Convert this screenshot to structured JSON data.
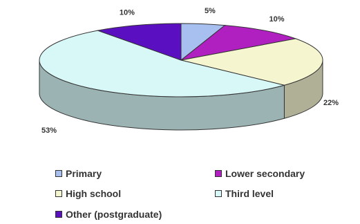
{
  "chart_data": {
    "type": "pie",
    "style": "3d",
    "slices": [
      {
        "label": "Primary",
        "value": 5,
        "value_label": "5%",
        "color": "#a8c0f0"
      },
      {
        "label": "Lower secondary",
        "value": 10,
        "value_label": "10%",
        "color": "#b020c0"
      },
      {
        "label": "High school",
        "value": 22,
        "value_label": "22%",
        "color": "#f5f5d0"
      },
      {
        "label": "Third level",
        "value": 53,
        "value_label": "53%",
        "color": "#d8f8f8"
      },
      {
        "label": "Other (postgraduate)",
        "value": 10,
        "value_label": "10%",
        "color": "#5a10c0"
      }
    ],
    "legend_position": "bottom"
  }
}
